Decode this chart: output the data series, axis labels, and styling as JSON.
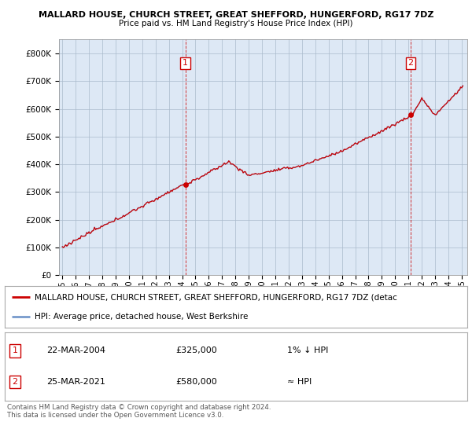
{
  "title1": "MALLARD HOUSE, CHURCH STREET, GREAT SHEFFORD, HUNGERFORD, RG17 7DZ",
  "title2": "Price paid vs. HM Land Registry's House Price Index (HPI)",
  "background_color": "#ffffff",
  "plot_bg_color": "#dde8f5",
  "grid_color": "#aabbcc",
  "hpi_color": "#7799cc",
  "price_color": "#cc0000",
  "legend_line1": "MALLARD HOUSE, CHURCH STREET, GREAT SHEFFORD, HUNGERFORD, RG17 7DZ (detac",
  "legend_line2": "HPI: Average price, detached house, West Berkshire",
  "table_row1_num": "1",
  "table_row1_date": "22-MAR-2004",
  "table_row1_price": "£325,000",
  "table_row1_note": "1% ↓ HPI",
  "table_row2_num": "2",
  "table_row2_date": "25-MAR-2021",
  "table_row2_price": "£580,000",
  "table_row2_note": "≈ HPI",
  "footer": "Contains HM Land Registry data © Crown copyright and database right 2024.\nThis data is licensed under the Open Government Licence v3.0.",
  "ylim_max": 850000,
  "sale1_idx": 111,
  "sale1_price": 325000,
  "sale2_idx": 314,
  "sale2_price": 580000
}
